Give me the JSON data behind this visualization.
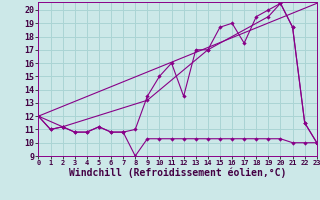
{
  "background_color": "#cce8e8",
  "grid_color": "#aad4d4",
  "line_color": "#880088",
  "xlabel": "Windchill (Refroidissement éolien,°C)",
  "xlim": [
    0,
    23
  ],
  "ylim": [
    9,
    20.6
  ],
  "xticks": [
    0,
    1,
    2,
    3,
    4,
    5,
    6,
    7,
    8,
    9,
    10,
    11,
    12,
    13,
    14,
    15,
    16,
    17,
    18,
    19,
    20,
    21,
    22,
    23
  ],
  "yticks": [
    9,
    10,
    11,
    12,
    13,
    14,
    15,
    16,
    17,
    18,
    19,
    20
  ],
  "series1_x": [
    0,
    1,
    2,
    3,
    4,
    5,
    6,
    7,
    8,
    9,
    10,
    11,
    12,
    13,
    14,
    15,
    16,
    17,
    18,
    19,
    20,
    21,
    22,
    23
  ],
  "series1_y": [
    12,
    11,
    11.2,
    10.8,
    10.8,
    11.2,
    10.8,
    10.8,
    9.0,
    10.3,
    10.3,
    10.3,
    10.3,
    10.3,
    10.3,
    10.3,
    10.3,
    10.3,
    10.3,
    10.3,
    10.3,
    10.0,
    10.0,
    10.0
  ],
  "series2_x": [
    0,
    1,
    2,
    3,
    4,
    5,
    6,
    7,
    8,
    9,
    10,
    11,
    12,
    13,
    14,
    15,
    16,
    17,
    18,
    19,
    20,
    21,
    22,
    23
  ],
  "series2_y": [
    12,
    11,
    11.2,
    10.8,
    10.8,
    11.2,
    10.8,
    10.8,
    11.0,
    13.5,
    15.0,
    16.0,
    13.5,
    17.0,
    17.0,
    18.7,
    19.0,
    17.5,
    19.5,
    20.0,
    20.5,
    18.7,
    11.5,
    10.0
  ],
  "series3_x": [
    0,
    2,
    9,
    14,
    19,
    20,
    21,
    22,
    23
  ],
  "series3_y": [
    12,
    11.2,
    13.2,
    17.0,
    19.5,
    20.5,
    18.7,
    11.5,
    10.0
  ],
  "series4_x": [
    0,
    23
  ],
  "series4_y": [
    12,
    20.5
  ]
}
